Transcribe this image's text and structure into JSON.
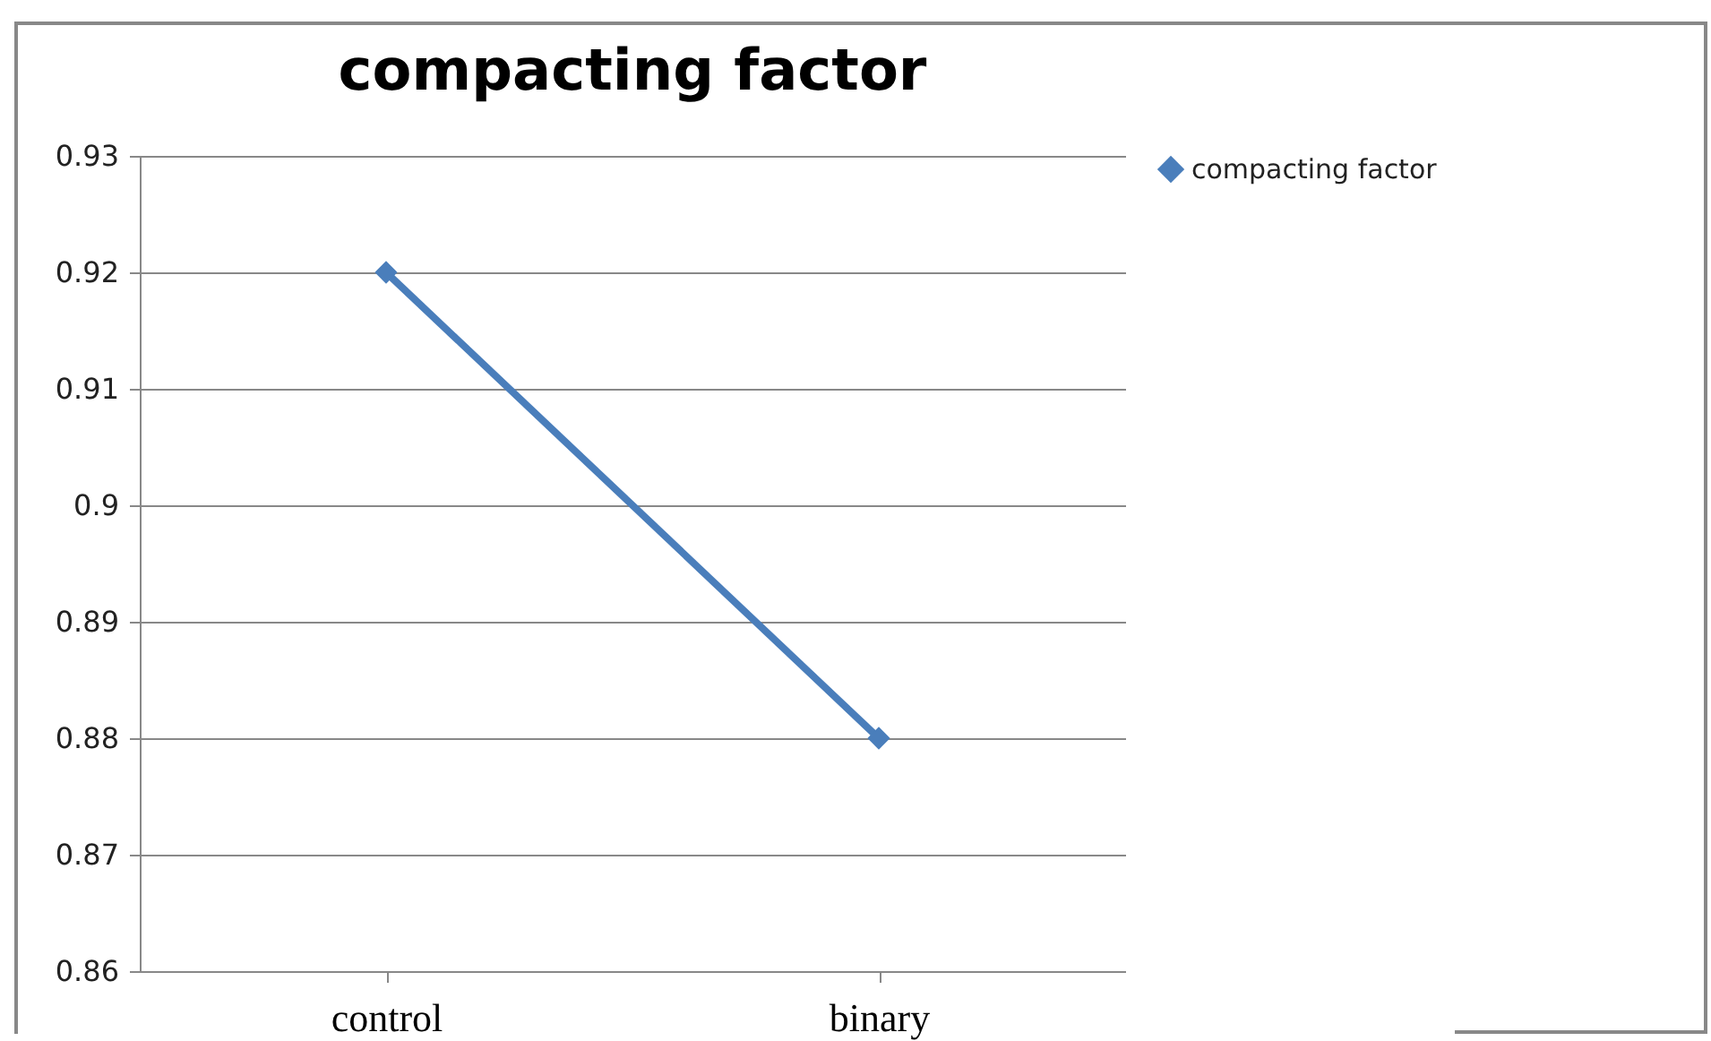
{
  "chart_data": {
    "type": "line",
    "title": "compacting factor",
    "categories": [
      "control",
      "binary"
    ],
    "series": [
      {
        "name": "compacting factor",
        "color": "#4a7ebb",
        "values": [
          0.92,
          0.88
        ]
      }
    ],
    "ylim": [
      0.86,
      0.93
    ],
    "yticks": [
      0.86,
      0.87,
      0.88,
      0.89,
      0.9,
      0.91,
      0.92,
      0.93
    ],
    "grid": "y",
    "legend": "right",
    "marker": "diamond"
  }
}
